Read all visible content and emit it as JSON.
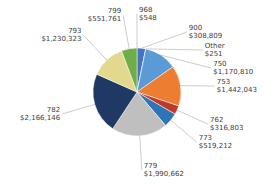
{
  "chart_data": {
    "type": "pie",
    "categories": [
      "968",
      "900",
      "Other",
      "750",
      "753",
      "762",
      "773",
      "779",
      "782",
      "793",
      "799"
    ],
    "values": [
      548,
      308809,
      251,
      1170810,
      1442043,
      316803,
      519212,
      1990662,
      2166146,
      1230323,
      551761
    ],
    "value_labels": [
      "$548",
      "$308,809",
      "$251",
      "$1,170,810",
      "$1,442,043",
      "$316,803",
      "$519,212",
      "$1,990,662",
      "$2,166,146",
      "$1,230,323",
      "$551,761"
    ],
    "colors": [
      "#c07050",
      "#4472c4",
      "#f5d98b",
      "#5b9bd5",
      "#ed7d31",
      "#c0392b",
      "#2e75b6",
      "#bfbfbf",
      "#1f3864",
      "#e2d98f",
      "#70ad47"
    ],
    "data_labels": true
  }
}
